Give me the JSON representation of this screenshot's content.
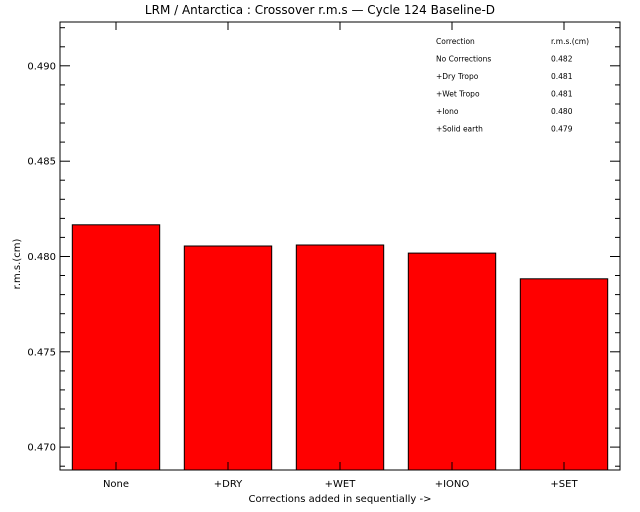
{
  "chart_data": {
    "type": "bar",
    "title": "LRM / Antarctica : Crossover r.m.s — Cycle 124 Baseline-D",
    "xlabel": "Corrections added in sequentially ->",
    "ylabel": "r.m.s.(cm)",
    "categories": [
      "None",
      "+DRY",
      "+WET",
      "+IONO",
      "+SET"
    ],
    "values": [
      0.48166,
      0.48055,
      0.4806,
      0.48018,
      0.47883
    ],
    "ylim": [
      0.4688,
      0.4923
    ],
    "yticks": [
      0.47,
      0.475,
      0.48,
      0.485,
      0.49
    ],
    "ytick_labels": [
      "0.470",
      "0.475",
      "0.480",
      "0.485",
      "0.490"
    ],
    "yminor_step": 0.001,
    "grid": false,
    "bar_color": "#ff0000",
    "legend_table": {
      "placement": "top-right",
      "headers": [
        "Correction",
        "r.m.s.(cm)"
      ],
      "rows": [
        [
          "No Corrections",
          "0.482"
        ],
        [
          "+Dry Tropo",
          "0.481"
        ],
        [
          "+Wet Tropo",
          "0.481"
        ],
        [
          "+Iono",
          "0.480"
        ],
        [
          "+Solid earth",
          "0.479"
        ]
      ]
    }
  }
}
